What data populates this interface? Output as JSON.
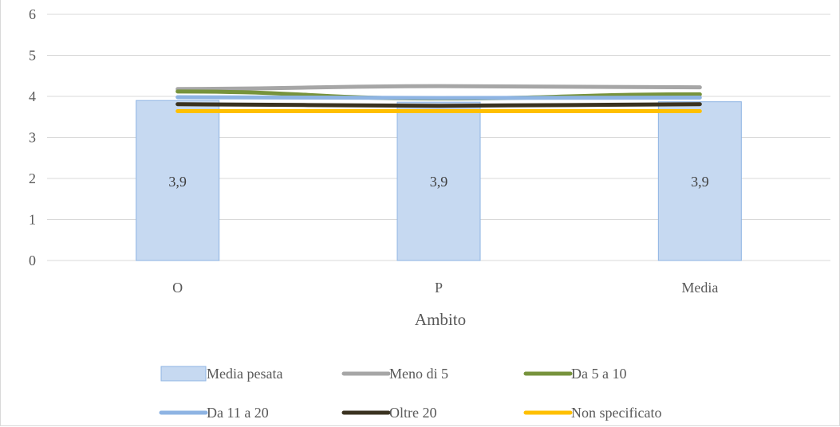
{
  "chart_data": {
    "type": "bar",
    "title": "",
    "xlabel": "Ambito",
    "ylabel": "",
    "ylim": [
      0,
      6
    ],
    "yticks": [
      "0",
      "1",
      "2",
      "3",
      "4",
      "5",
      "6"
    ],
    "grid": true,
    "legend_position": "bottom",
    "categories": [
      "O",
      "P",
      "Media"
    ],
    "bar_series": {
      "name": "Media pesata",
      "values": [
        3.9,
        3.86,
        3.87
      ],
      "labels": [
        "3,9",
        "3,9",
        "3,9"
      ],
      "color": "#c6d9f1",
      "border": "#8eb4e3"
    },
    "line_series": [
      {
        "name": "Meno di 5",
        "values": [
          4.18,
          4.25,
          4.22
        ],
        "color": "#a6a6a6"
      },
      {
        "name": "Da 5 a 10",
        "values": [
          4.12,
          3.95,
          4.05
        ],
        "color": "#77933c"
      },
      {
        "name": "Da 11 a 20",
        "values": [
          3.98,
          3.96,
          3.97
        ],
        "color": "#8eb4e3"
      },
      {
        "name": "Oltre 20",
        "values": [
          3.81,
          3.77,
          3.81
        ],
        "color": "#3a3220"
      },
      {
        "name": "Non specificato",
        "values": [
          3.64,
          3.64,
          3.64
        ],
        "color": "#ffc000"
      }
    ],
    "legend_order": [
      "Media pesata",
      "Meno di 5",
      "Da 5 a 10",
      "Da 11 a 20",
      "Oltre 20",
      "Non specificato"
    ]
  }
}
